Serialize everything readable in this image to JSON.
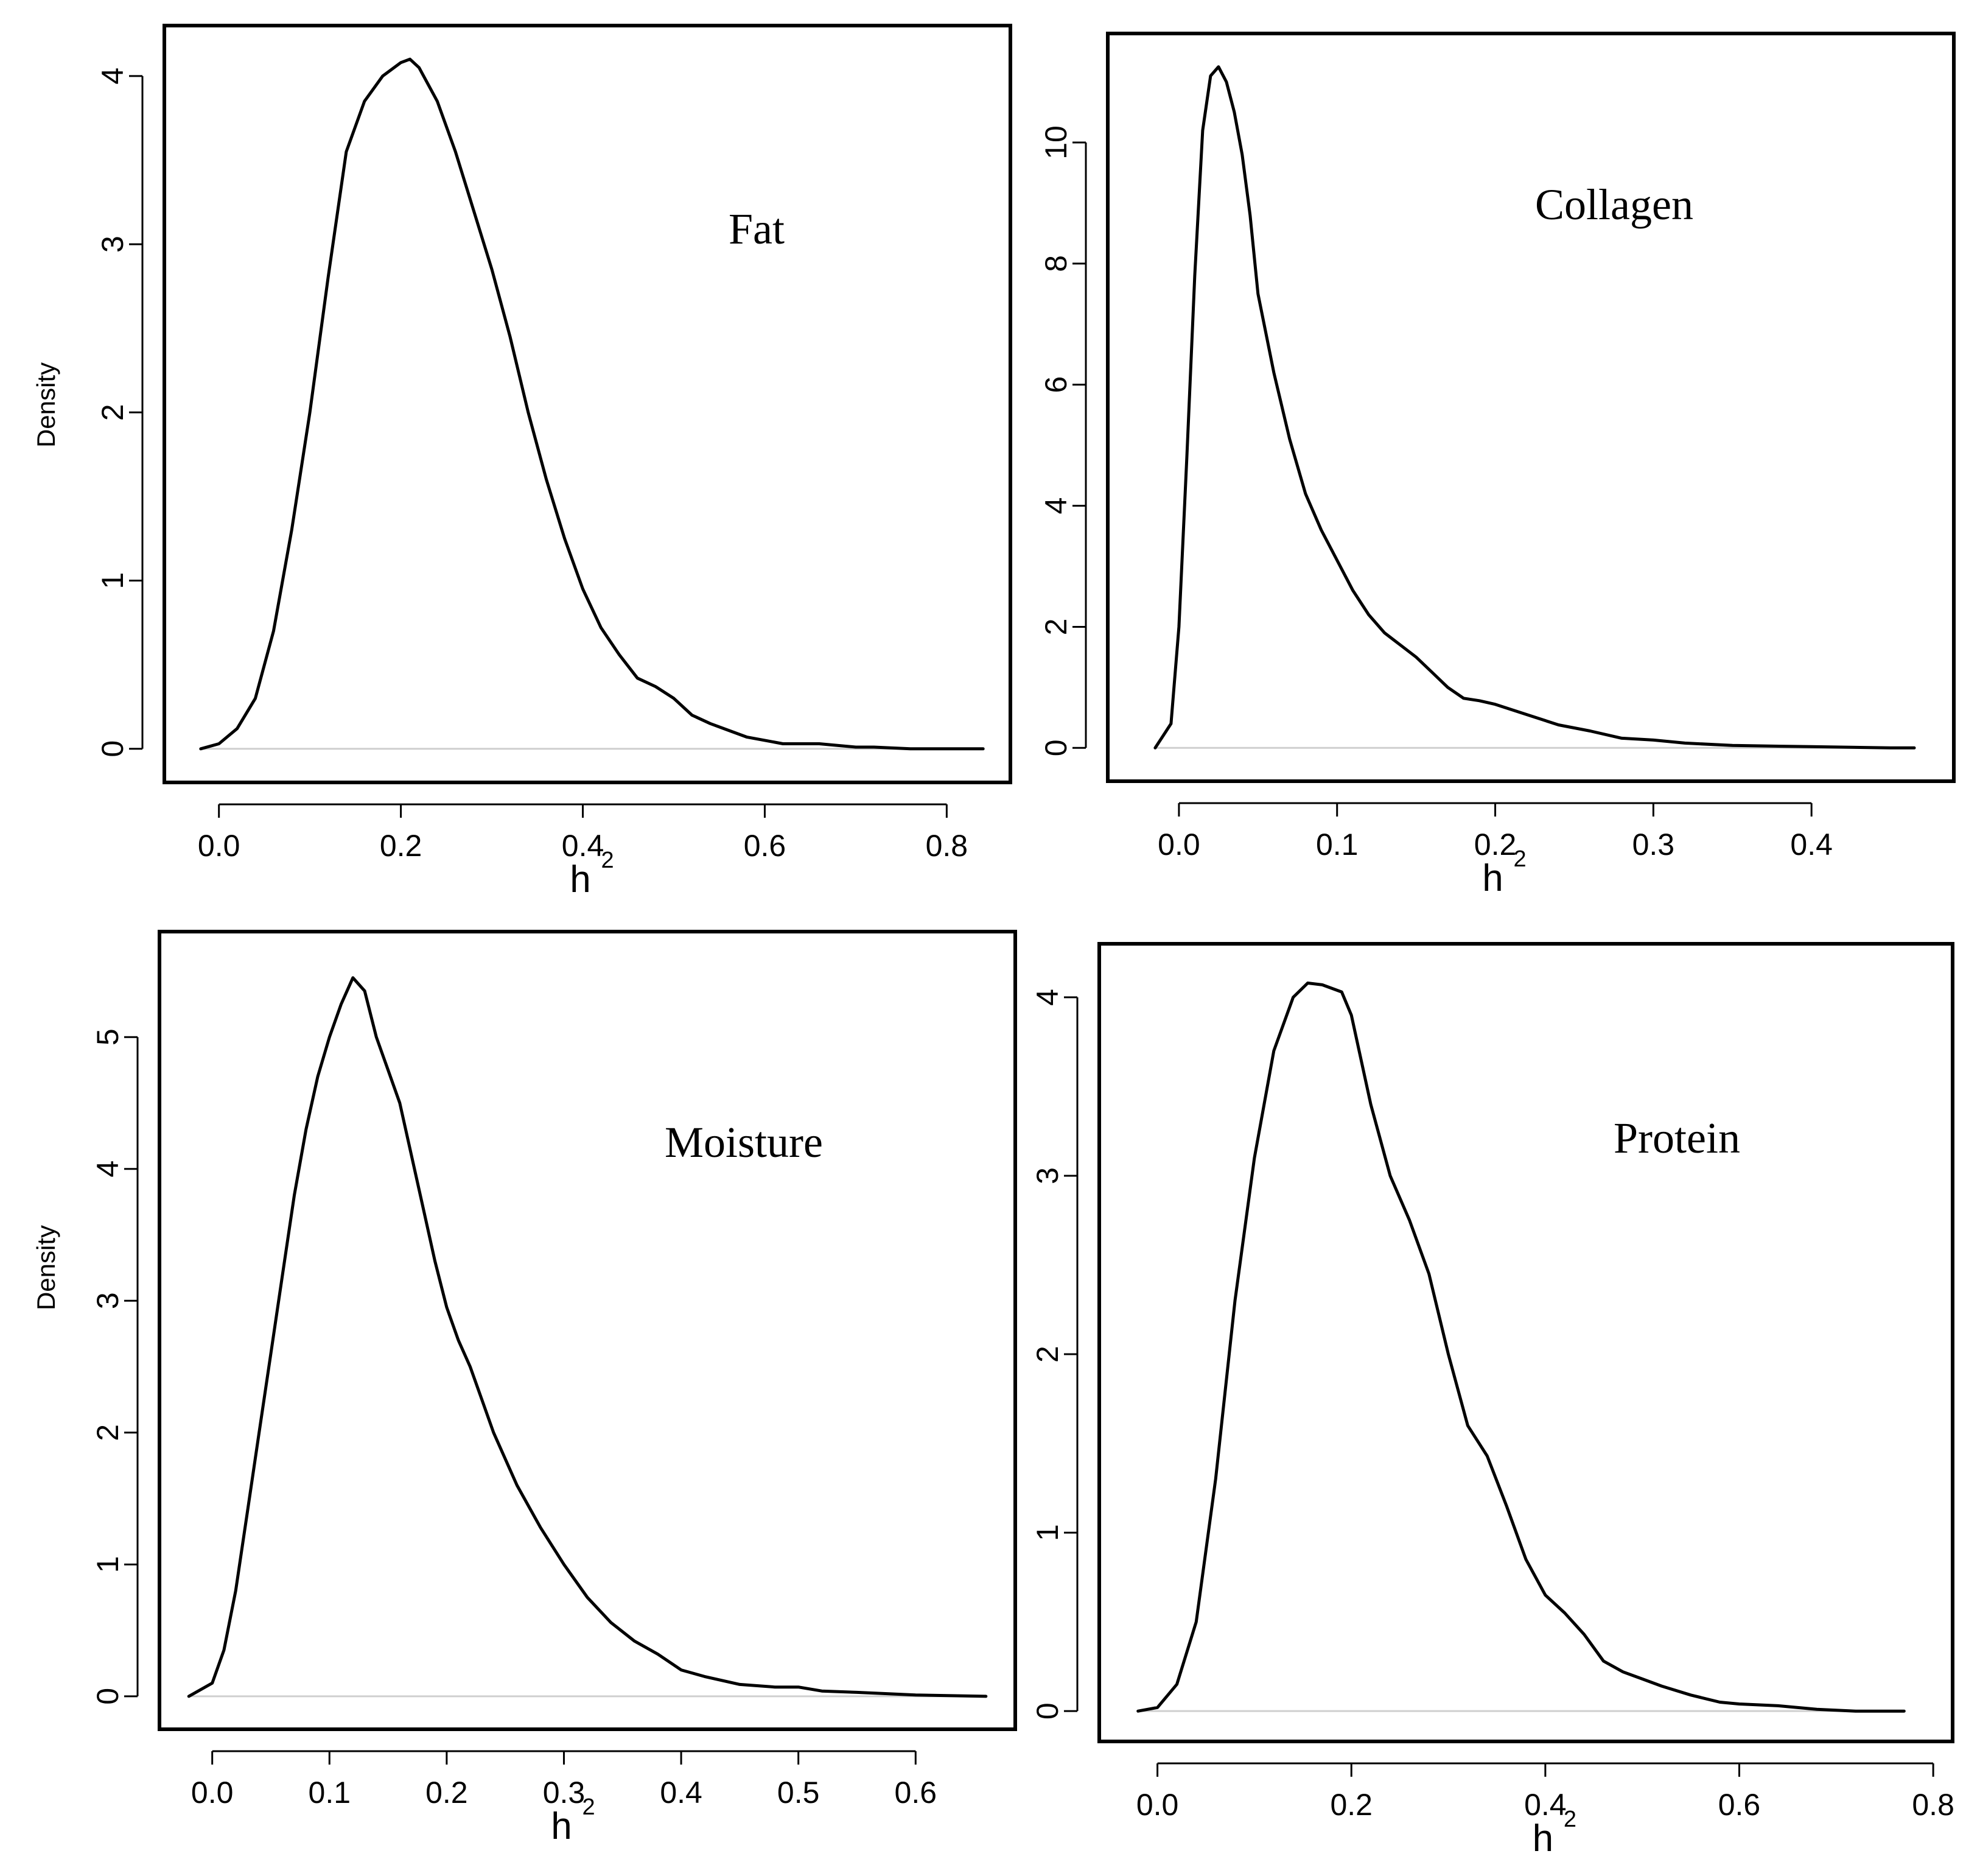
{
  "chart_data": [
    {
      "type": "line",
      "panel_label": "Fat",
      "xlabel": "h",
      "xlabel_sup": "2",
      "ylabel": "Density",
      "xlim": [
        -0.06,
        0.87
      ],
      "ylim": [
        -0.2,
        4.3
      ],
      "x_ticks": [
        0.0,
        0.2,
        0.4,
        0.6,
        0.8
      ],
      "x_tick_labels": [
        "0.0",
        "0.2",
        "0.4",
        "0.6",
        "0.8"
      ],
      "y_ticks": [
        0,
        1,
        2,
        3,
        4
      ],
      "y_tick_labels": [
        "0",
        "1",
        "2",
        "3",
        "4"
      ],
      "series": [
        {
          "x": [
            -0.02,
            0.0,
            0.02,
            0.04,
            0.06,
            0.08,
            0.1,
            0.12,
            0.14,
            0.16,
            0.18,
            0.2,
            0.21,
            0.22,
            0.24,
            0.26,
            0.28,
            0.3,
            0.32,
            0.34,
            0.36,
            0.38,
            0.4,
            0.42,
            0.44,
            0.46,
            0.48,
            0.5,
            0.52,
            0.54,
            0.56,
            0.58,
            0.6,
            0.62,
            0.64,
            0.66,
            0.68,
            0.7,
            0.72,
            0.76,
            0.8,
            0.84
          ],
          "y": [
            0.0,
            0.03,
            0.12,
            0.3,
            0.7,
            1.3,
            2.0,
            2.8,
            3.55,
            3.85,
            4.0,
            4.08,
            4.1,
            4.05,
            3.85,
            3.55,
            3.2,
            2.85,
            2.45,
            2.0,
            1.6,
            1.25,
            0.95,
            0.72,
            0.56,
            0.42,
            0.37,
            0.3,
            0.2,
            0.15,
            0.11,
            0.07,
            0.05,
            0.03,
            0.03,
            0.03,
            0.02,
            0.01,
            0.01,
            0.0,
            0.0,
            0.0
          ]
        }
      ]
    },
    {
      "type": "line",
      "panel_label": "Collagen",
      "xlabel": "h",
      "xlabel_sup": "2",
      "ylabel": "",
      "xlim": [
        -0.045,
        0.49
      ],
      "ylim": [
        -0.55,
        11.8
      ],
      "x_ticks": [
        0.0,
        0.1,
        0.2,
        0.3,
        0.4
      ],
      "x_tick_labels": [
        "0.0",
        "0.1",
        "0.2",
        "0.3",
        "0.4"
      ],
      "y_ticks": [
        0,
        2,
        4,
        6,
        8,
        10
      ],
      "y_tick_labels": [
        "0",
        "2",
        "4",
        "6",
        "8",
        "10"
      ],
      "series": [
        {
          "x": [
            -0.015,
            -0.005,
            0.0,
            0.005,
            0.01,
            0.015,
            0.02,
            0.025,
            0.03,
            0.035,
            0.04,
            0.045,
            0.05,
            0.06,
            0.07,
            0.08,
            0.09,
            0.1,
            0.11,
            0.12,
            0.13,
            0.14,
            0.15,
            0.16,
            0.17,
            0.18,
            0.19,
            0.2,
            0.22,
            0.24,
            0.26,
            0.28,
            0.3,
            0.32,
            0.35,
            0.4,
            0.45,
            0.465
          ],
          "y": [
            0.0,
            0.4,
            2.0,
            4.8,
            7.8,
            10.2,
            11.1,
            11.25,
            11.0,
            10.5,
            9.8,
            8.8,
            7.5,
            6.2,
            5.1,
            4.2,
            3.6,
            3.1,
            2.6,
            2.2,
            1.9,
            1.7,
            1.5,
            1.25,
            1.0,
            0.82,
            0.78,
            0.72,
            0.55,
            0.38,
            0.28,
            0.16,
            0.13,
            0.08,
            0.04,
            0.02,
            0.0,
            0.0
          ]
        }
      ]
    },
    {
      "type": "line",
      "panel_label": "Moisture",
      "xlabel": "h",
      "xlabel_sup": "2",
      "ylabel": "Density",
      "xlim": [
        -0.045,
        0.685
      ],
      "ylim": [
        -0.25,
        5.8
      ],
      "x_ticks": [
        0.0,
        0.1,
        0.2,
        0.3,
        0.4,
        0.5,
        0.6
      ],
      "x_tick_labels": [
        "0.0",
        "0.1",
        "0.2",
        "0.3",
        "0.4",
        "0.5",
        "0.6"
      ],
      "y_ticks": [
        0,
        1,
        2,
        3,
        4,
        5
      ],
      "y_tick_labels": [
        "0",
        "1",
        "2",
        "3",
        "4",
        "5"
      ],
      "series": [
        {
          "x": [
            -0.02,
            0.0,
            0.01,
            0.02,
            0.03,
            0.04,
            0.05,
            0.06,
            0.07,
            0.08,
            0.09,
            0.1,
            0.11,
            0.12,
            0.13,
            0.14,
            0.15,
            0.16,
            0.17,
            0.18,
            0.19,
            0.2,
            0.21,
            0.22,
            0.23,
            0.24,
            0.26,
            0.28,
            0.3,
            0.32,
            0.34,
            0.36,
            0.38,
            0.4,
            0.42,
            0.45,
            0.48,
            0.5,
            0.52,
            0.55,
            0.6,
            0.66
          ],
          "y": [
            0.0,
            0.1,
            0.35,
            0.8,
            1.4,
            2.0,
            2.6,
            3.2,
            3.8,
            4.3,
            4.7,
            5.0,
            5.25,
            5.45,
            5.35,
            5.0,
            4.75,
            4.5,
            4.1,
            3.7,
            3.3,
            2.95,
            2.7,
            2.5,
            2.25,
            2.0,
            1.6,
            1.28,
            1.0,
            0.75,
            0.56,
            0.42,
            0.32,
            0.2,
            0.15,
            0.09,
            0.07,
            0.07,
            0.04,
            0.03,
            0.01,
            0.0
          ]
        }
      ]
    },
    {
      "type": "line",
      "panel_label": "Protein",
      "xlabel": "h",
      "xlabel_sup": "2",
      "ylabel": "",
      "xlim": [
        -0.06,
        0.82
      ],
      "ylim": [
        -0.17,
        4.3
      ],
      "x_ticks": [
        0.0,
        0.2,
        0.4,
        0.6,
        0.8
      ],
      "x_tick_labels": [
        "0.0",
        "0.2",
        "0.4",
        "0.6",
        "0.8"
      ],
      "y_ticks": [
        0,
        1,
        2,
        3,
        4
      ],
      "y_tick_labels": [
        "0",
        "1",
        "2",
        "3",
        "4"
      ],
      "series": [
        {
          "x": [
            -0.02,
            0.0,
            0.02,
            0.04,
            0.06,
            0.08,
            0.1,
            0.12,
            0.14,
            0.155,
            0.17,
            0.19,
            0.2,
            0.22,
            0.24,
            0.26,
            0.28,
            0.3,
            0.32,
            0.34,
            0.36,
            0.38,
            0.4,
            0.42,
            0.44,
            0.46,
            0.48,
            0.5,
            0.52,
            0.55,
            0.58,
            0.6,
            0.64,
            0.68,
            0.72,
            0.77
          ],
          "y": [
            0.0,
            0.02,
            0.15,
            0.5,
            1.3,
            2.3,
            3.1,
            3.7,
            4.0,
            4.08,
            4.07,
            4.03,
            3.9,
            3.4,
            3.0,
            2.75,
            2.45,
            2.0,
            1.6,
            1.43,
            1.15,
            0.85,
            0.65,
            0.55,
            0.43,
            0.28,
            0.22,
            0.18,
            0.14,
            0.09,
            0.05,
            0.04,
            0.03,
            0.01,
            0.0,
            0.0
          ]
        }
      ]
    }
  ]
}
